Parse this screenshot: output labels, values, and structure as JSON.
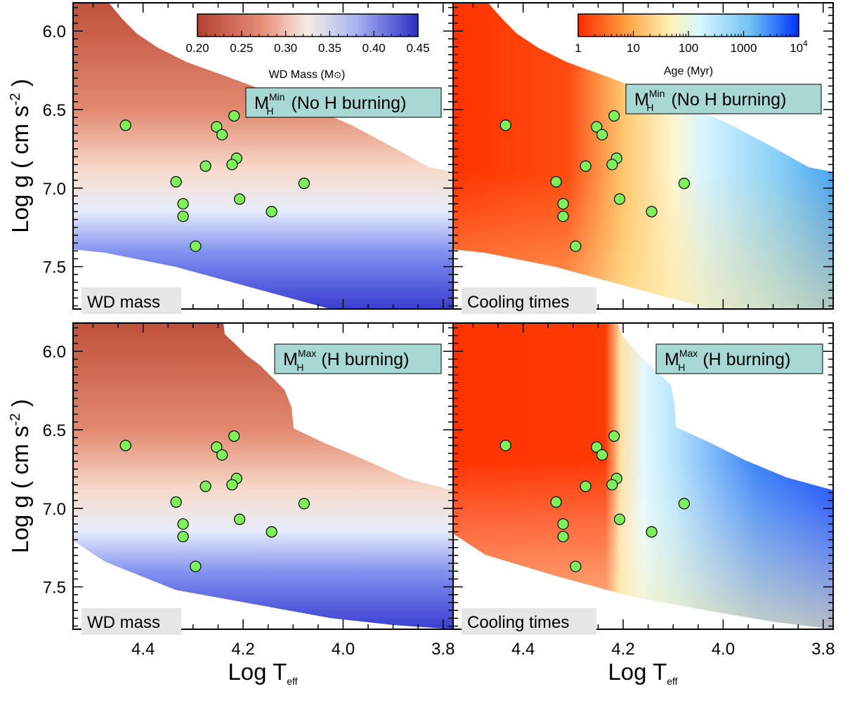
{
  "colors": {
    "mass_low": "#b2402f",
    "mass_mid": "#f6ece6",
    "mass_high": "#2b2fc6",
    "age_low": "#ff3300",
    "age_mid1": "#ffa040",
    "age_mid2": "#fff5c0",
    "age_mid3": "#d9f7ff",
    "age_mid4": "#6fc2f5",
    "age_high": "#0033ff",
    "point_fill": "#7ef05a",
    "label_box": "#e6e6e6",
    "model_box": "#a8d8d4"
  },
  "axes": {
    "x_title": "Log T",
    "x_title_sub": "eff",
    "y_title": "Log g ( cm s",
    "y_title_sup": "-2",
    "y_title_end": " )"
  },
  "colorbars": {
    "mass": {
      "title": "WD Mass (M",
      "title_symbol": "⊙",
      "title_end": ")",
      "ticks": [
        "0.20",
        "0.25",
        "0.30",
        "0.35",
        "0.40",
        "0.45"
      ]
    },
    "age": {
      "title": "Age (Myr)",
      "ticks": [
        "1",
        "10",
        "100",
        "1000",
        "10"
      ],
      "last_tick_sup": "4"
    }
  },
  "panels": {
    "top_left": {
      "label": "WD mass"
    },
    "top_right": {
      "label": "Cooling times"
    },
    "bottom_left": {
      "label": "WD mass"
    },
    "bottom_right": {
      "label": "Cooling times"
    }
  },
  "models": {
    "min": {
      "main": "M",
      "sup": "Min",
      "sub": "H",
      "text": " (No H burning)"
    },
    "max": {
      "main": "M",
      "sup": "Max",
      "sub": "H",
      "text": " (H burning)"
    }
  },
  "chart_data": {
    "type": "scatter",
    "title": "",
    "xlabel": "Log Teff",
    "ylabel": "Log g ( cm s-2 )",
    "xlim": [
      4.54,
      3.78
    ],
    "ylim": [
      7.77,
      5.82
    ],
    "x_ticks": [
      "4.4",
      "4.2",
      "4.0",
      "3.8"
    ],
    "x_tick_values": [
      4.4,
      4.2,
      4.0,
      3.8
    ],
    "y_ticks": [
      "6.0",
      "6.5",
      "7.0",
      "7.5"
    ],
    "y_tick_values": [
      6.0,
      6.5,
      7.0,
      7.5
    ],
    "panels": [
      "WD mass (M_H^Min)",
      "Cooling times (M_H^Min)",
      "WD mass (M_H^Max)",
      "Cooling times (M_H^Max)"
    ],
    "points": {
      "x": [
        4.435,
        4.253,
        4.242,
        4.218,
        4.275,
        4.213,
        4.222,
        4.334,
        4.078,
        4.32,
        4.207,
        4.32,
        4.143,
        4.295
      ],
      "y": [
        6.6,
        6.61,
        6.66,
        6.54,
        6.86,
        6.81,
        6.85,
        6.96,
        6.97,
        7.1,
        7.07,
        7.18,
        7.15,
        7.37
      ]
    },
    "colorbar_mass": {
      "label": "WD Mass (M⊙)",
      "range": [
        0.2,
        0.45
      ]
    },
    "colorbar_age": {
      "label": "Age (Myr)",
      "range": [
        1,
        10000
      ],
      "scale": "log"
    }
  }
}
